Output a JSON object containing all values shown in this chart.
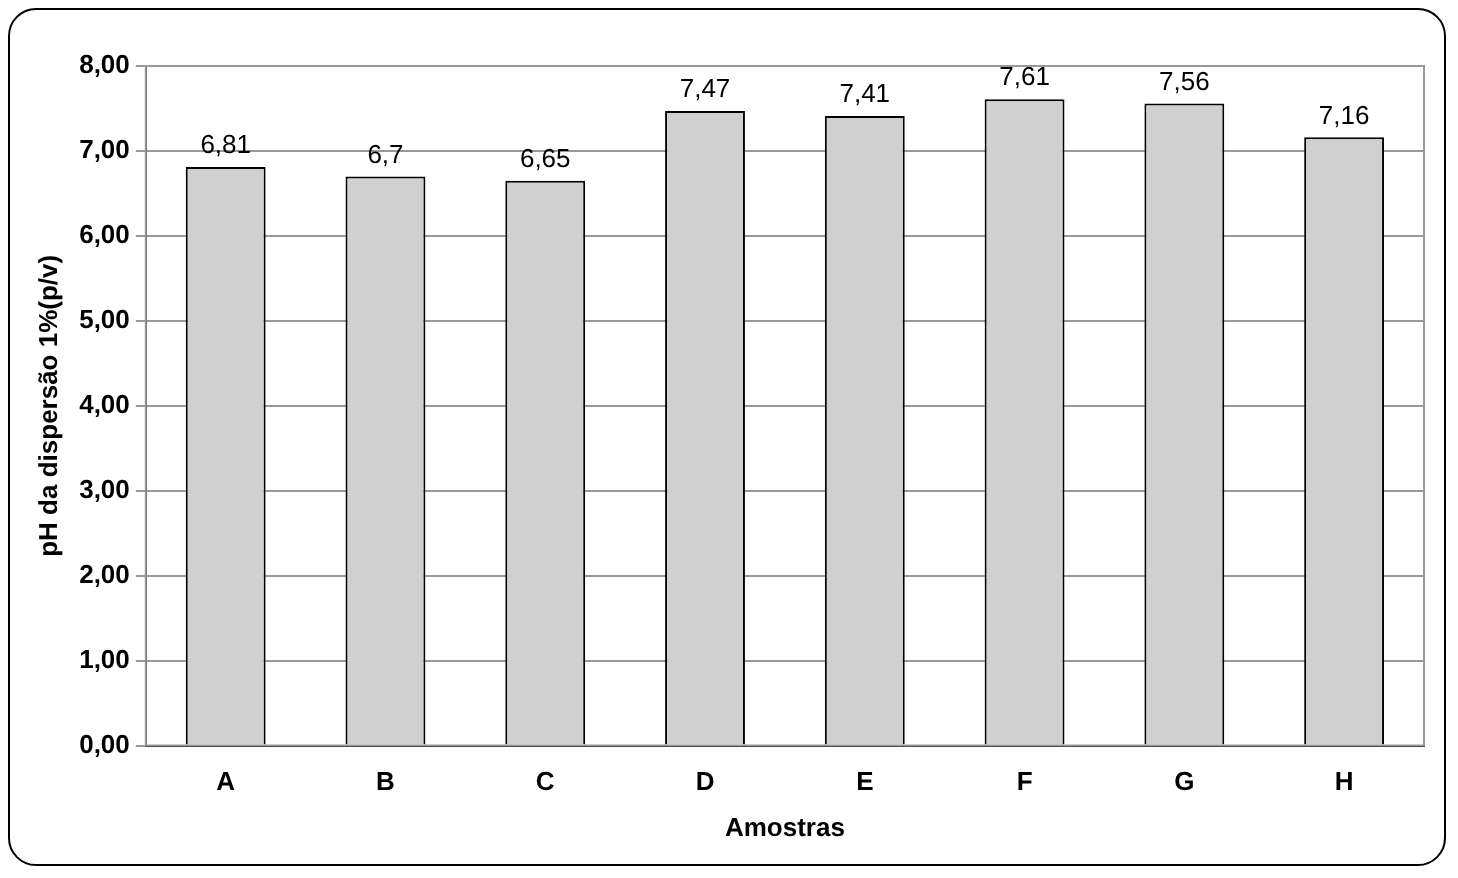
{
  "chart_data": {
    "type": "bar",
    "xlabel": "Amostras",
    "ylabel": "pH da dispersão 1%(p/v)",
    "categories": [
      "A",
      "B",
      "C",
      "D",
      "E",
      "F",
      "G",
      "H"
    ],
    "values": [
      6.81,
      6.7,
      6.65,
      7.47,
      7.41,
      7.61,
      7.56,
      7.16
    ],
    "value_labels": [
      "6,81",
      "6,7",
      "6,65",
      "7,47",
      "7,41",
      "7,61",
      "7,56",
      "7,16"
    ],
    "color": "#d0d0d0",
    "ylim": [
      0,
      8
    ],
    "yticks": [
      {
        "value": 0,
        "label": "0,00"
      },
      {
        "value": 1,
        "label": "1,00"
      },
      {
        "value": 2,
        "label": "2,00"
      },
      {
        "value": 3,
        "label": "3,00"
      },
      {
        "value": 4,
        "label": "4,00"
      },
      {
        "value": 5,
        "label": "5,00"
      },
      {
        "value": 6,
        "label": "6,00"
      },
      {
        "value": 7,
        "label": "7,00"
      },
      {
        "value": 8,
        "label": "8,00"
      }
    ],
    "grid": "y",
    "legend": false
  }
}
